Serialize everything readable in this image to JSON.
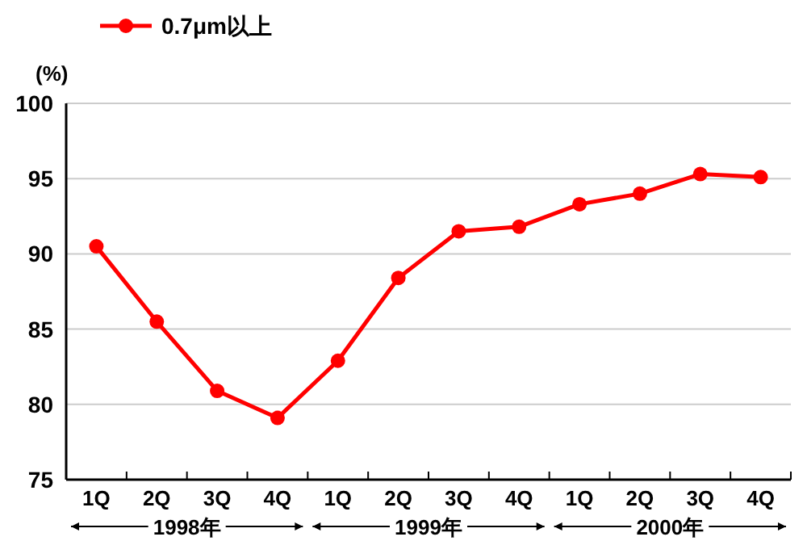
{
  "chart_data": {
    "type": "line",
    "ylabel": "(%)",
    "categories": [
      "1Q",
      "2Q",
      "3Q",
      "4Q",
      "1Q",
      "2Q",
      "3Q",
      "4Q",
      "1Q",
      "2Q",
      "3Q",
      "4Q"
    ],
    "series": [
      {
        "name": "0.7μm以上",
        "color": "#ff0000",
        "values": [
          90.5,
          85.5,
          80.9,
          79.1,
          82.9,
          88.4,
          91.5,
          91.8,
          93.3,
          94.0,
          95.3,
          95.1
        ]
      }
    ],
    "ylim": [
      75,
      100
    ],
    "yticks": [
      75,
      80,
      85,
      90,
      95,
      100
    ],
    "grid": "y",
    "legend": "top left",
    "marker": "circle",
    "line_style": "solid",
    "annotations": [
      "1998年",
      "1999年",
      "2000年"
    ]
  }
}
